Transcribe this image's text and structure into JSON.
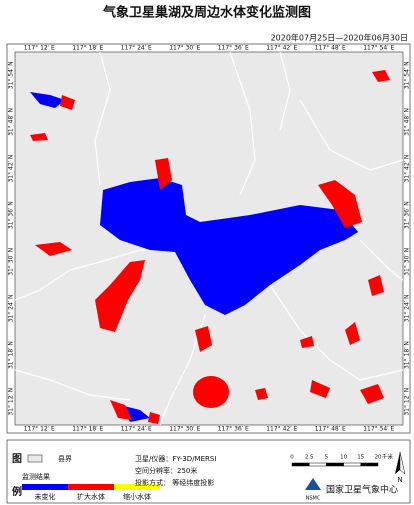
{
  "title": "气象卫星巢湖及周边水体变化监测图",
  "date_range": "2020年07月25日—2020年06月30日",
  "map": {
    "lon_labels": [
      "117° 12′ E",
      "117° 18′ E",
      "117° 24′ E",
      "117° 30′ E",
      "117° 36′ E",
      "117° 42′ E",
      "117° 48′ E",
      "117° 54′ E"
    ],
    "lat_labels": [
      "31° 54′ N",
      "31° 48′ N",
      "31° 42′ N",
      "31° 36′ N",
      "31° 30′ N",
      "31° 24′ N",
      "31° 18′ N",
      "31° 12′ N"
    ]
  },
  "legend": {
    "title_top": "图",
    "title_bottom": "例",
    "county_border": "县界",
    "result_heading": "监测结果",
    "items": [
      {
        "label": "未变化",
        "color": "#0000ff"
      },
      {
        "label": "扩大水体",
        "color": "#ff0000"
      },
      {
        "label": "缩小水体",
        "color": "#ffff00"
      }
    ]
  },
  "info": {
    "satellite": "卫星/仪器：FY-3D/MERSI",
    "resolution": "空间分辨率：250米",
    "projection": "投影方式：  等经纬度投影"
  },
  "scale_bar": {
    "labels": [
      "0",
      "2.5",
      "5",
      "10",
      "15",
      "20"
    ],
    "unit": "千米"
  },
  "north": "N",
  "logo": {
    "name": "国家卫星气象中心",
    "abbr": "NSMC"
  }
}
